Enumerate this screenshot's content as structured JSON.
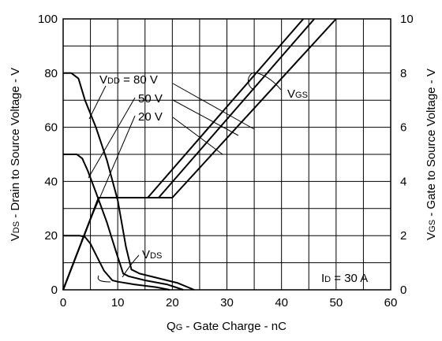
{
  "chart_data": {
    "type": "line",
    "xlabel": {
      "main": "Q",
      "sub": "G",
      "rest": "  -  Gate Charge - nC"
    },
    "ylabel_left": {
      "main": "V",
      "sub": "DS",
      "rest": "  - Drain to Source Voltage - V"
    },
    "ylabel_right": {
      "main": "V",
      "sub": "GS",
      "rest": "  - Gate to Source Voltage - V"
    },
    "xlim": [
      0,
      60
    ],
    "ylim_left": [
      0,
      100
    ],
    "ylim_right": [
      0,
      10
    ],
    "grid": true,
    "x_ticks": [
      "0",
      "10",
      "20",
      "30",
      "40",
      "50",
      "60"
    ],
    "y_left_ticks": [
      "0",
      "20",
      "40",
      "60",
      "80",
      "100"
    ],
    "y_right_ticks": [
      "0",
      "2",
      "4",
      "6",
      "8",
      "10"
    ],
    "series": [
      {
        "name": "VDD = 80 V",
        "group": "VDS",
        "points": [
          [
            0,
            80
          ],
          [
            1.5,
            80
          ],
          [
            2.8,
            78
          ],
          [
            4,
            70
          ],
          [
            6,
            60
          ],
          [
            8,
            48
          ],
          [
            10,
            33
          ],
          [
            11.5,
            16
          ],
          [
            12.5,
            7.5
          ],
          [
            14,
            6
          ],
          [
            17,
            4.5
          ],
          [
            21,
            2.5
          ],
          [
            24,
            0
          ]
        ]
      },
      {
        "name": "50 V",
        "group": "VDS",
        "points": [
          [
            0,
            50
          ],
          [
            2.5,
            50
          ],
          [
            3.5,
            48.5
          ],
          [
            4.5,
            44
          ],
          [
            6,
            36
          ],
          [
            8,
            25
          ],
          [
            9.7,
            14
          ],
          [
            11,
            6
          ],
          [
            12,
            5
          ],
          [
            15,
            3.5
          ],
          [
            19,
            2
          ],
          [
            22,
            0
          ]
        ]
      },
      {
        "name": "20 V",
        "group": "VDS",
        "points": [
          [
            0,
            20
          ],
          [
            3,
            20
          ],
          [
            4,
            19.5
          ],
          [
            5,
            17
          ],
          [
            6,
            13
          ],
          [
            7.5,
            7
          ],
          [
            9,
            3.5
          ],
          [
            10,
            3
          ],
          [
            13,
            2
          ],
          [
            17,
            1
          ],
          [
            19.5,
            0
          ]
        ]
      },
      {
        "name": "VDD = 80 V",
        "group": "VGS",
        "points": [
          [
            0,
            0
          ],
          [
            6.5,
            3.4
          ],
          [
            20,
            3.4
          ],
          [
            50,
            10
          ]
        ]
      },
      {
        "name": "50 V",
        "group": "VGS",
        "points": [
          [
            0,
            0
          ],
          [
            6.5,
            3.4
          ],
          [
            17.5,
            3.4
          ],
          [
            46,
            10
          ]
        ]
      },
      {
        "name": "20 V",
        "group": "VGS",
        "points": [
          [
            0,
            0
          ],
          [
            6.5,
            3.4
          ],
          [
            15.5,
            3.4
          ],
          [
            44,
            10
          ]
        ]
      }
    ],
    "annotations": {
      "vdd_main": "V",
      "vdd_sub": "DD",
      "vdd_rest": " = 80 V",
      "v50": "50 V",
      "v20": "20 V",
      "vgs_main": "V",
      "vgs_sub": "GS",
      "vds_main": "V",
      "vds_sub": "DS",
      "id_main": "I",
      "id_sub": "D",
      "id_rest": " = 30 A"
    }
  }
}
